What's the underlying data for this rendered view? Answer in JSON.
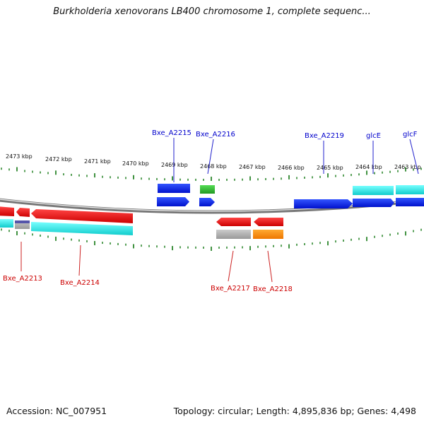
{
  "header": {
    "title": "Burkholderia xenovorans LB400 chromosome 1, complete sequenc..."
  },
  "footer": {
    "accession": "Accession: NC_007951",
    "summary": "Topology: circular; Length: 4,895,836 bp; Genes: 4,498"
  },
  "ruler": {
    "ticks": [
      "2473 kbp",
      "2472 kbp",
      "2471 kbp",
      "2470 kbp",
      "2469 kbp",
      "2468 kbp",
      "2467 kbp",
      "2466 kbp",
      "2465 kbp",
      "2464 kbp",
      "2463 kbp"
    ]
  },
  "genes_top": [
    {
      "label": "Bxe_A2215",
      "color": "#0000cc"
    },
    {
      "label": "Bxe_A2216",
      "color": "#0000cc"
    },
    {
      "label": "Bxe_A2219",
      "color": "#0000cc"
    },
    {
      "label": "glcE",
      "color": "#0000cc"
    },
    {
      "label": "glcF",
      "color": "#0000cc"
    }
  ],
  "genes_bottom": [
    {
      "label": "Bxe_A2213",
      "color": "#cc0000"
    },
    {
      "label": "Bxe_A2214",
      "color": "#cc0000"
    },
    {
      "label": "Bxe_A2217",
      "color": "#cc0000"
    },
    {
      "label": "Bxe_A2218",
      "color": "#cc0000"
    }
  ],
  "colors": {
    "forward_gene": "#0022ee",
    "reverse_gene": "#ee0000",
    "forward_product": "#22dddd",
    "rna_gene": "#33bb33",
    "pseudo": "#aaaaaa",
    "orange": "#ff8800",
    "tick": "#117711",
    "backbone": "#777777"
  }
}
